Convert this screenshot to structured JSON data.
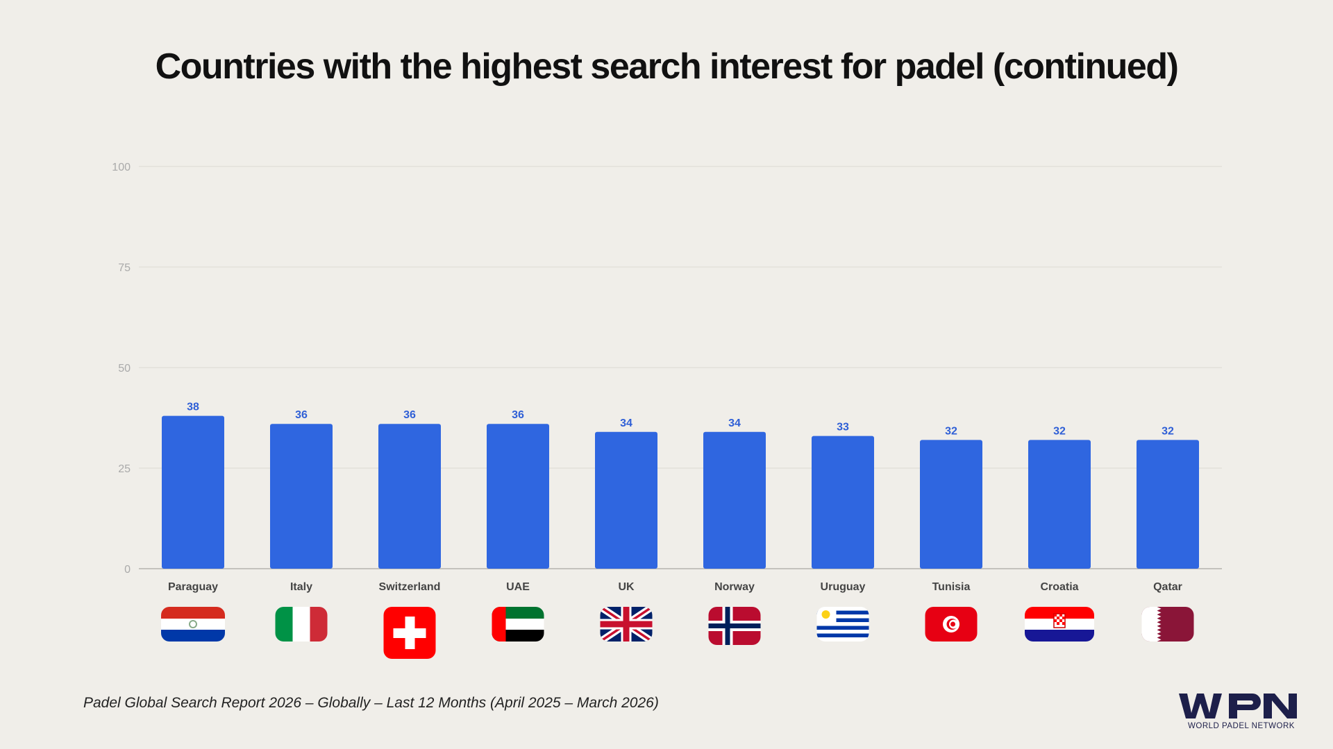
{
  "title": "Countries with the highest search interest for padel (continued)",
  "footnote": "Padel Global Search Report 2026 – Globally – Last 12 Months (April 2025 – March 2026)",
  "logo": {
    "mark": "WPN",
    "wordmark": "WORLD PADEL NETWORK"
  },
  "colors": {
    "bar": "#2f66e0",
    "value_label": "#2f5fd6",
    "background": "#f0eee9"
  },
  "chart_data": {
    "type": "bar",
    "title": "Countries with the highest search interest for padel (continued)",
    "xlabel": "",
    "ylabel": "",
    "ylim": [
      0,
      100
    ],
    "yticks": [
      0,
      25,
      50,
      75,
      100
    ],
    "grid": true,
    "data_labels": true,
    "categories": [
      "Paraguay",
      "Italy",
      "Switzerland",
      "UAE",
      "UK",
      "Norway",
      "Uruguay",
      "Tunisia",
      "Croatia",
      "Qatar"
    ],
    "flag_icons": [
      "paraguay-flag-icon",
      "italy-flag-icon",
      "switzerland-flag-icon",
      "uae-flag-icon",
      "uk-flag-icon",
      "norway-flag-icon",
      "uruguay-flag-icon",
      "tunisia-flag-icon",
      "croatia-flag-icon",
      "qatar-flag-icon"
    ],
    "values": [
      38,
      36,
      36,
      36,
      34,
      34,
      33,
      32,
      32,
      32
    ]
  }
}
